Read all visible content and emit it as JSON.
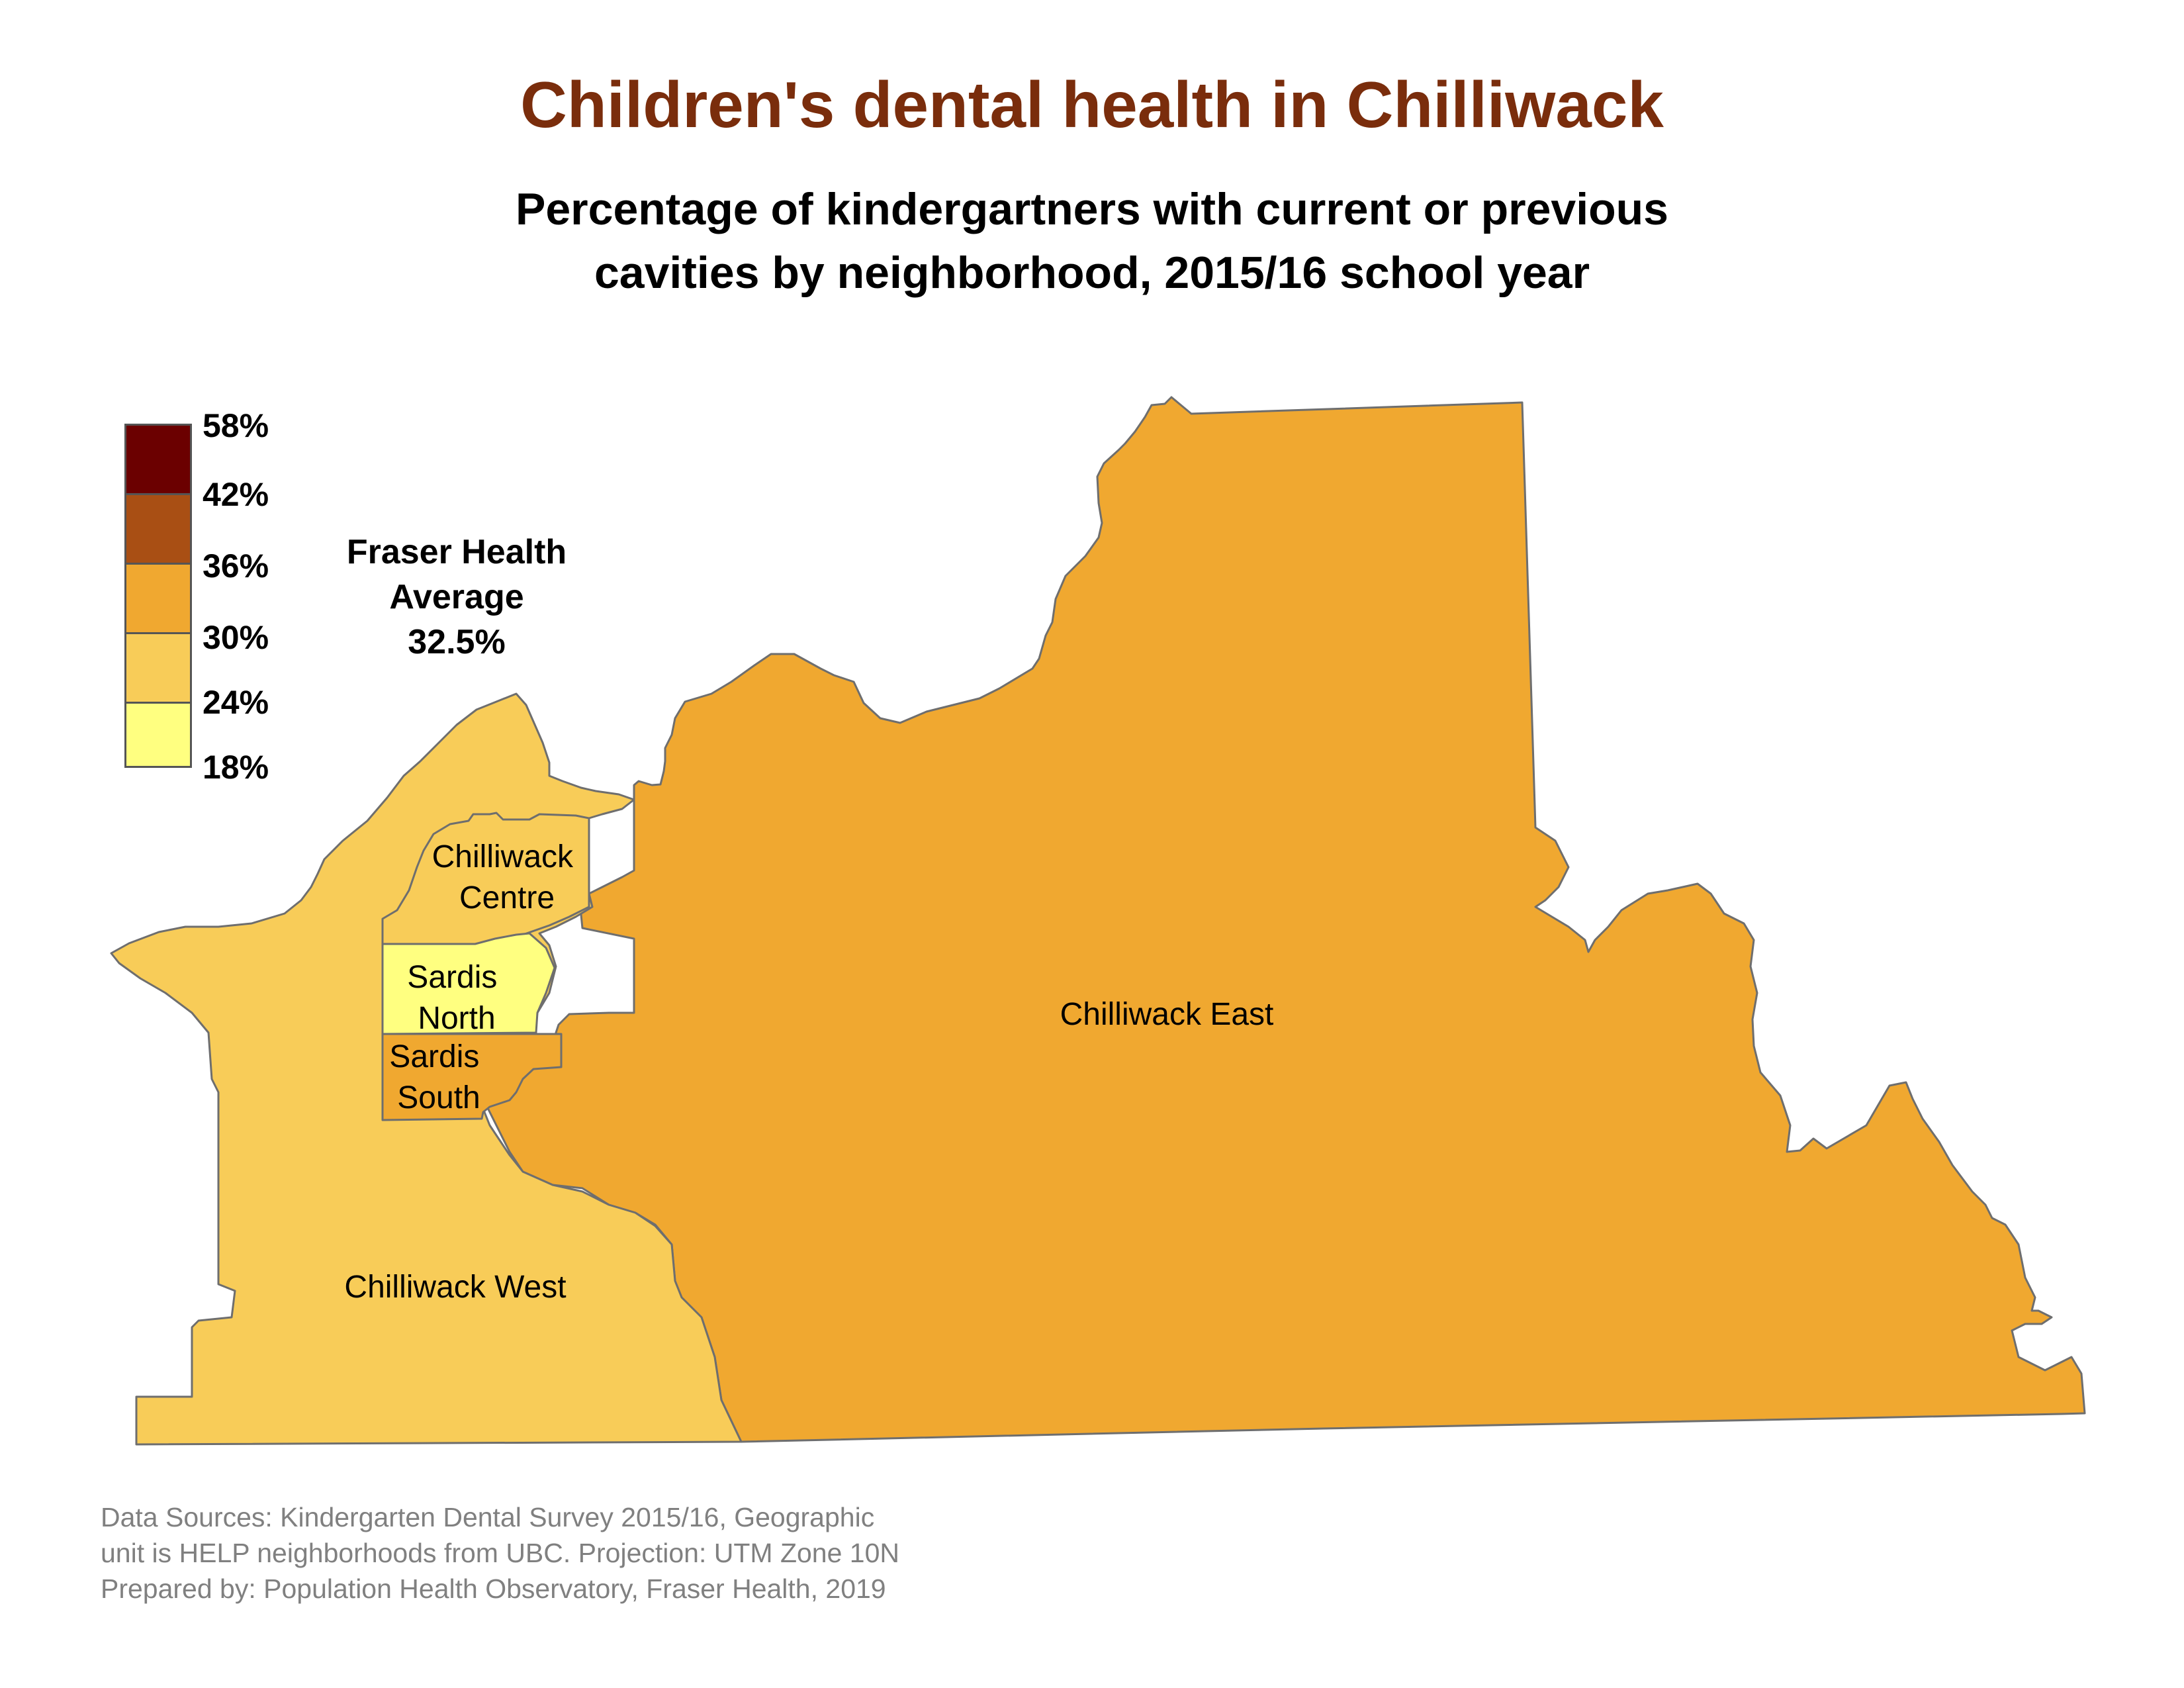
{
  "title": "Children's dental health in Chilliwack",
  "subtitle": {
    "line1": "Percentage of kindergartners with current or previous",
    "line2": "cavities by neighborhood, 2015/16 school year"
  },
  "legend": {
    "breaks": [
      "58%",
      "42%",
      "36%",
      "30%",
      "24%",
      "18%"
    ],
    "classes": [
      {
        "range": "42%–58%",
        "color": "#6b0000"
      },
      {
        "range": "36%–42%",
        "color": "#a94f14"
      },
      {
        "range": "30%–36%",
        "color": "#f0a830"
      },
      {
        "range": "24%–30%",
        "color": "#f8cc58"
      },
      {
        "range": "18%–24%",
        "color": "#ffff80"
      }
    ]
  },
  "fraser_average": {
    "line1": "Fraser Health",
    "line2": "Average",
    "value": "32.5%"
  },
  "regions": [
    {
      "id": "chilliwack-east",
      "lines": [
        "Chilliwack East"
      ],
      "class": "30%–36%",
      "color": "#f0a830"
    },
    {
      "id": "chilliwack-west",
      "lines": [
        "Chilliwack West"
      ],
      "class": "24%–30%",
      "color": "#f8cc58"
    },
    {
      "id": "chilliwack-centre",
      "lines": [
        "Chilliwack",
        "Centre"
      ],
      "class": "24%–30%",
      "color": "#f8cc58"
    },
    {
      "id": "sardis-north",
      "lines": [
        "Sardis",
        "North"
      ],
      "class": "18%–24%",
      "color": "#ffff80"
    },
    {
      "id": "sardis-south",
      "lines": [
        "Sardis",
        "South"
      ],
      "class": "30%–36%",
      "color": "#f0a830"
    }
  ],
  "sources": {
    "line1": "Data Sources: Kindergarten Dental Survey 2015/16, Geographic",
    "line2": "unit is HELP neighborhoods from UBC. Projection: UTM Zone 10N",
    "line3": "Prepared by: Population Health Observatory, Fraser Health, 2019"
  }
}
